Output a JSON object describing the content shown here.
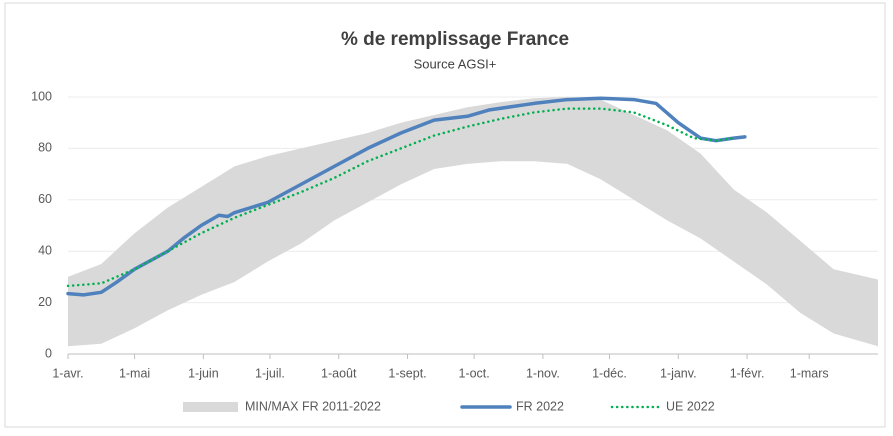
{
  "chart_data": {
    "type": "line",
    "title": "% de remplissage France",
    "subtitle": "Source AGSI+",
    "xlim": [
      0,
      365
    ],
    "xticks": [
      {
        "value": 0,
        "label": "1-avr."
      },
      {
        "value": 30,
        "label": "1-mai"
      },
      {
        "value": 61,
        "label": "1-juin"
      },
      {
        "value": 91,
        "label": "1-juil."
      },
      {
        "value": 122,
        "label": "1-août"
      },
      {
        "value": 153,
        "label": "1-sept."
      },
      {
        "value": 183,
        "label": "1-oct."
      },
      {
        "value": 214,
        "label": "1-nov."
      },
      {
        "value": 244,
        "label": "1-déc."
      },
      {
        "value": 275,
        "label": "1-janv."
      },
      {
        "value": 306,
        "label": "1-févr."
      },
      {
        "value": 334,
        "label": "1-mars"
      }
    ],
    "ylim": [
      0,
      100
    ],
    "yticks": [
      0,
      20,
      40,
      60,
      80,
      100
    ],
    "grid": true,
    "legend": "bottom",
    "series": [
      {
        "name": "MIN/MAX FR 2011-2022",
        "color": "#d9d9d9",
        "x": [
          0,
          15,
          30,
          45,
          60,
          75,
          90,
          105,
          120,
          135,
          150,
          165,
          180,
          195,
          210,
          225,
          240,
          255,
          270,
          285,
          300,
          315,
          330,
          345,
          365
        ],
        "max": [
          30,
          35,
          47,
          57,
          65,
          73,
          77,
          80,
          83,
          86,
          90,
          93,
          96,
          98,
          99.5,
          100,
          99,
          93,
          87,
          78,
          64,
          55,
          44,
          33,
          29
        ],
        "min": [
          3,
          4,
          10,
          17,
          23,
          28,
          36,
          43,
          52,
          59,
          66,
          72,
          74,
          75,
          75,
          74,
          68,
          60,
          52,
          45,
          36,
          27,
          16,
          8,
          3
        ]
      },
      {
        "name": "FR 2022",
        "color": "#4f81bd",
        "x": [
          0,
          7,
          15,
          22,
          30,
          45,
          52,
          60,
          68,
          72,
          75,
          90,
          105,
          120,
          135,
          150,
          165,
          180,
          190,
          210,
          225,
          240,
          255,
          265,
          275,
          285,
          292,
          300,
          305
        ],
        "values": [
          23.5,
          23,
          24,
          28,
          33,
          40,
          45,
          50,
          54,
          53.5,
          55,
          59,
          66,
          73,
          80,
          86,
          91,
          92.5,
          95,
          97.5,
          99,
          99.5,
          99,
          97.5,
          90,
          84,
          83,
          84,
          84.5
        ]
      },
      {
        "name": "UE 2022",
        "color": "#00b050",
        "x": [
          0,
          15,
          30,
          45,
          60,
          75,
          90,
          105,
          120,
          135,
          150,
          165,
          180,
          195,
          210,
          225,
          240,
          255,
          270,
          282,
          292,
          300
        ],
        "values": [
          26.5,
          27.5,
          33,
          40,
          47,
          53,
          58,
          63,
          68.5,
          75,
          80,
          85,
          88.5,
          91.5,
          94,
          95.5,
          95.5,
          94,
          89,
          84,
          83,
          84
        ]
      }
    ]
  }
}
